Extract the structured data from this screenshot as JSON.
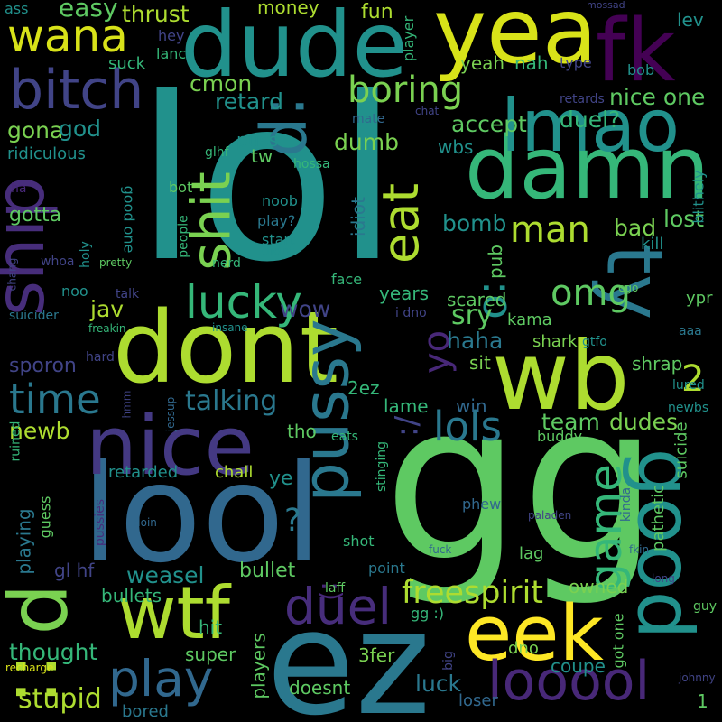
{
  "words": [
    {
      "text": "lol",
      "color": "#21918c"
    },
    {
      "text": "gg",
      "color": "#5ec962"
    },
    {
      "text": "wb",
      "color": "#addc30"
    },
    {
      "text": "ez",
      "color": "#2a788e"
    },
    {
      "text": "dont",
      "color": "#addc30"
    },
    {
      "text": "lool",
      "color": "#31688e"
    },
    {
      "text": "nice",
      "color": "#443983"
    },
    {
      "text": "dude",
      "color": "#21918c"
    },
    {
      "text": "yea",
      "color": "#d8e219"
    },
    {
      "text": "damn",
      "color": "#35b779"
    },
    {
      "text": "lmao",
      "color": "#21918c"
    },
    {
      "text": "fk",
      "color": "#440154"
    },
    {
      "text": "ty",
      "color": "#2a788e"
    },
    {
      "text": "good",
      "color": "#21918c"
    },
    {
      "text": "eek",
      "color": "#fde725"
    },
    {
      "text": "wtf",
      "color": "#addc30"
    },
    {
      "text": "pussy",
      "color": "#2a788e"
    },
    {
      "text": "ship",
      "color": "#472d7b"
    },
    {
      "text": "bitch",
      "color": "#414487"
    },
    {
      "text": ":p",
      "color": "#2a788e"
    },
    {
      "text": "shit",
      "color": "#7ad151"
    },
    {
      "text": "wana",
      "color": "#d8e219"
    },
    {
      "text": "eat",
      "color": "#addc30"
    },
    {
      "text": "looool",
      "color": "#482878"
    },
    {
      "text": "play",
      "color": "#31688e"
    },
    {
      "text": "duel",
      "color": "#472d7b"
    },
    {
      "text": "d",
      "color": "#7ad151"
    },
    {
      "text": "::",
      "color": "#addc30"
    },
    {
      "text": "lucky",
      "color": "#35b779"
    },
    {
      "text": "time",
      "color": "#2a788e"
    },
    {
      "text": "game",
      "color": "#35b779"
    },
    {
      "text": ":o",
      "color": "#21918c"
    },
    {
      "text": "lols",
      "color": "#2a788e"
    },
    {
      "text": "boring",
      "color": "#7ad151"
    },
    {
      "text": "freespirit",
      "color": "#addc30"
    },
    {
      "text": "man",
      "color": "#addc30"
    },
    {
      "text": "yo",
      "color": "#482878"
    },
    {
      "text": "omg",
      "color": "#5ec962"
    },
    {
      "text": "2",
      "color": "#addc30"
    },
    {
      "text": ":)",
      "color": "#482878"
    },
    {
      "text": "stupid",
      "color": "#addc30"
    },
    {
      "text": "talking",
      "color": "#2a788e"
    },
    {
      "text": "dudes",
      "color": "#7ad151"
    },
    {
      "text": "weasel",
      "color": "#21918c"
    },
    {
      "text": "?",
      "color": "#2a788e"
    },
    {
      "text": ":/",
      "color": "#414487"
    },
    {
      "text": "luck",
      "color": "#2a788e"
    },
    {
      "text": "thought",
      "color": "#35b779"
    },
    {
      "text": "newb",
      "color": "#addc30"
    },
    {
      "text": "bad",
      "color": "#7ad151"
    },
    {
      "text": "lost",
      "color": "#5ec962"
    },
    {
      "text": "bomb",
      "color": "#21918c"
    },
    {
      "text": "team",
      "color": "#5ec962"
    },
    {
      "text": "haha",
      "color": "#2a788e"
    },
    {
      "text": "sry",
      "color": "#5ec962"
    },
    {
      "text": "dumb",
      "color": "#7ad151"
    },
    {
      "text": "accept",
      "color": "#5ec962"
    },
    {
      "text": "nice one",
      "color": "#5ec962"
    },
    {
      "text": "duel?",
      "color": "#35b779"
    },
    {
      "text": "retard",
      "color": "#21918c"
    },
    {
      "text": "cmon",
      "color": "#7ad151"
    },
    {
      "text": "thrust",
      "color": "#addc30"
    },
    {
      "text": "money",
      "color": "#addc30"
    },
    {
      "text": "fun",
      "color": "#addc30"
    },
    {
      "text": "easy",
      "color": "#5ec962"
    },
    {
      "text": "gona",
      "color": "#7ad151"
    },
    {
      "text": "god",
      "color": "#21918c"
    },
    {
      "text": "gotta",
      "color": "#5ec962"
    },
    {
      "text": "bullet",
      "color": "#5ec962"
    },
    {
      "text": "bullets",
      "color": "#35b779"
    },
    {
      "text": "super",
      "color": "#5ec962"
    },
    {
      "text": "wow",
      "color": "#414487"
    },
    {
      "text": "jav",
      "color": "#addc30"
    },
    {
      "text": "years",
      "color": "#35b779"
    },
    {
      "text": "sporon",
      "color": "#414487"
    },
    {
      "text": "yeah",
      "color": "#7ad151"
    },
    {
      "text": "nah",
      "color": "#35b779"
    },
    {
      "text": "owned",
      "color": "#7ad151"
    },
    {
      "text": "coupe",
      "color": "#21918c"
    },
    {
      "text": "shrap",
      "color": "#5ec962"
    },
    {
      "text": "shark",
      "color": "#7ad151"
    },
    {
      "text": "kama",
      "color": "#5ec962"
    },
    {
      "text": "scared",
      "color": "#5ec962"
    },
    {
      "text": "pub",
      "color": "#5ec962"
    },
    {
      "text": "idiot",
      "color": "#2a788e"
    },
    {
      "text": "wbs",
      "color": "#21918c"
    },
    {
      "text": "retarded",
      "color": "#21918c"
    },
    {
      "text": "chall",
      "color": "#addc30"
    },
    {
      "text": "ye",
      "color": "#21918c"
    },
    {
      "text": "tho",
      "color": "#5ec962"
    },
    {
      "text": "2ez",
      "color": "#35b779"
    },
    {
      "text": "lame",
      "color": "#35b779"
    },
    {
      "text": "win",
      "color": "#31688e"
    },
    {
      "text": "sit",
      "color": "#7ad151"
    },
    {
      "text": "puss",
      "color": "#21918c"
    },
    {
      "text": "tw",
      "color": "#5ec962"
    },
    {
      "text": "hit",
      "color": "#35b779"
    },
    {
      "text": "players",
      "color": "#5ec962"
    },
    {
      "text": "doesnt",
      "color": "#5ec962"
    },
    {
      "text": "bored",
      "color": "#2a788e"
    },
    {
      "text": "3fer",
      "color": "#7ad151"
    },
    {
      "text": "dno",
      "color": "#7ad151"
    },
    {
      "text": "loser",
      "color": "#31688e"
    },
    {
      "text": "lag",
      "color": "#5ec962"
    },
    {
      "text": "shot",
      "color": "#35b779"
    },
    {
      "text": "playing",
      "color": "#2a788e"
    },
    {
      "text": "guess",
      "color": "#5ec962"
    },
    {
      "text": "gl hf",
      "color": "#414487"
    },
    {
      "text": "ridiculous",
      "color": "#21918c"
    },
    {
      "text": "suck",
      "color": "#35b779"
    },
    {
      "text": "lanc",
      "color": "#35b779"
    },
    {
      "text": "hey",
      "color": "#414487"
    },
    {
      "text": "ass",
      "color": "#21918c"
    },
    {
      "text": "bob",
      "color": "#21918c"
    },
    {
      "text": "type",
      "color": "#414487"
    },
    {
      "text": "lev",
      "color": "#21918c"
    },
    {
      "text": "mate",
      "color": "#31688e"
    },
    {
      "text": "chat",
      "color": "#414487"
    },
    {
      "text": "retards",
      "color": "#414487"
    },
    {
      "text": "hossa",
      "color": "#35b779"
    },
    {
      "text": "glhf",
      "color": "#35b779"
    },
    {
      "text": "bot",
      "color": "#5ec962"
    },
    {
      "text": "good one",
      "color": "#21918c"
    },
    {
      "text": "noob",
      "color": "#21918c"
    },
    {
      "text": "play?",
      "color": "#2a788e"
    },
    {
      "text": "start",
      "color": "#21918c"
    },
    {
      "text": "didnt",
      "color": "#21918c"
    },
    {
      "text": "people",
      "color": "#35b779"
    },
    {
      "text": "nerd",
      "color": "#35b779"
    },
    {
      "text": "face",
      "color": "#35b779"
    },
    {
      "text": "kill",
      "color": "#21918c"
    },
    {
      "text": "ypr",
      "color": "#5ec962"
    },
    {
      "text": "aaa",
      "color": "#2a788e"
    },
    {
      "text": "gtfo",
      "color": "#21918c"
    },
    {
      "text": "lured",
      "color": "#21918c"
    },
    {
      "text": "newbs",
      "color": "#21918c"
    },
    {
      "text": "buddy",
      "color": "#5ec962"
    },
    {
      "text": "eats",
      "color": "#35b779"
    },
    {
      "text": "stinging",
      "color": "#35b779"
    },
    {
      "text": "kinda",
      "color": "#31688e"
    },
    {
      "text": "phew",
      "color": "#31688e"
    },
    {
      "text": "paladen",
      "color": "#414487"
    },
    {
      "text": "fuck",
      "color": "#31688e"
    },
    {
      "text": "fkin",
      "color": "#31688e"
    },
    {
      "text": "long",
      "color": "#414487"
    },
    {
      "text": "guy",
      "color": "#5ec962"
    },
    {
      "text": "got one",
      "color": "#5ec962"
    },
    {
      "text": "johnny",
      "color": "#414487"
    },
    {
      "text": "1",
      "color": "#5ec962"
    },
    {
      "text": "big",
      "color": "#414487"
    },
    {
      "text": "point",
      "color": "#2a788e"
    },
    {
      "text": "laff",
      "color": "#5ec962"
    },
    {
      "text": "gg :)",
      "color": "#35b779"
    },
    {
      "text": "doin",
      "color": "#31688e"
    },
    {
      "text": "pussies",
      "color": "#472d7b"
    },
    {
      "text": "jessup",
      "color": "#31688e"
    },
    {
      "text": "hmm",
      "color": "#414487"
    },
    {
      "text": "ruined",
      "color": "#35b779"
    },
    {
      "text": "recharge",
      "color": "#d8e219"
    },
    {
      "text": "hard",
      "color": "#414487"
    },
    {
      "text": "freakin",
      "color": "#35b779"
    },
    {
      "text": "suicider",
      "color": "#2a788e"
    },
    {
      "text": "insane",
      "color": "#21918c"
    },
    {
      "text": "i dno",
      "color": "#414487"
    },
    {
      "text": "talk",
      "color": "#414487"
    },
    {
      "text": "pretty",
      "color": "#5ec962"
    },
    {
      "text": "noo",
      "color": "#21918c"
    },
    {
      "text": "whoa",
      "color": "#414487"
    },
    {
      "text": "holy",
      "color": "#21918c"
    },
    {
      "text": "chang",
      "color": "#414487"
    },
    {
      "text": "ha",
      "color": "#482878"
    },
    {
      "text": "player",
      "color": "#35b779"
    },
    {
      "text": "mossad",
      "color": "#414487"
    },
    {
      "text": "pathetic",
      "color": "#5ec962"
    },
    {
      "text": "suicide",
      "color": "#5ec962"
    },
    {
      "text": "blithely",
      "color": "#21918c"
    },
    {
      "text": "ego",
      "color": "#5ec962"
    }
  ]
}
